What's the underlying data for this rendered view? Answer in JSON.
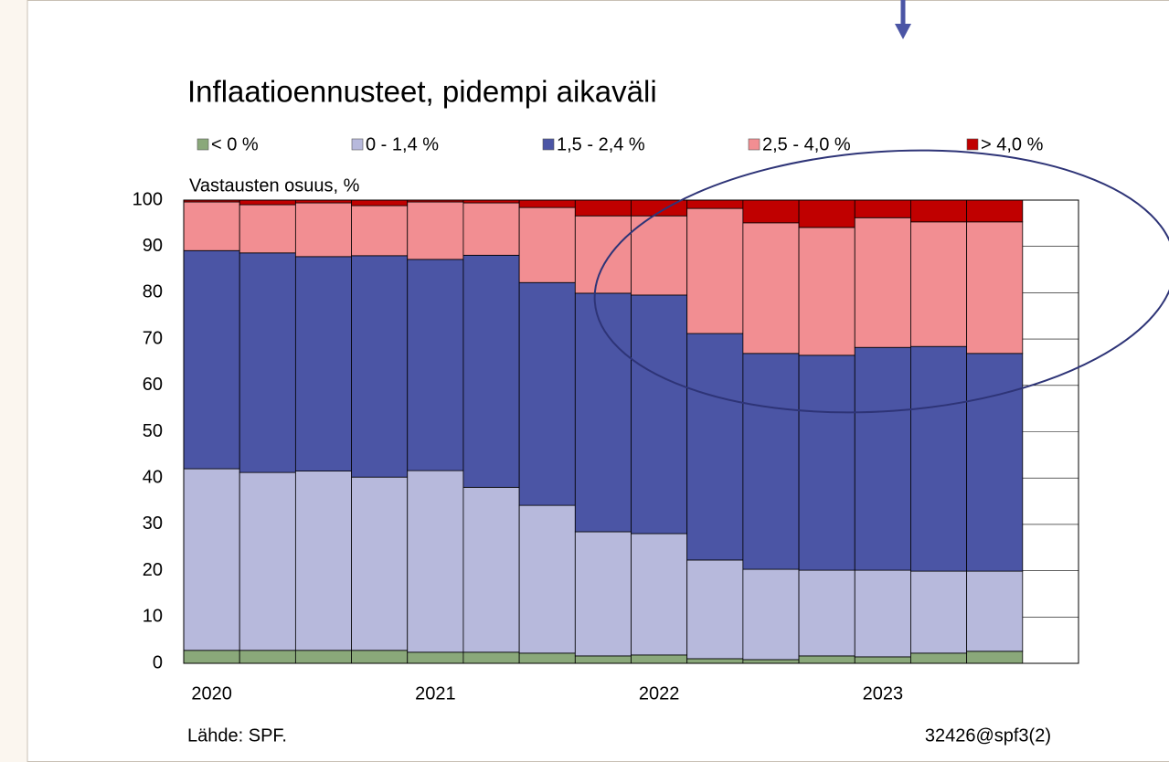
{
  "chart_data": {
    "type": "stacked-bar",
    "title": "Inflaatioennusteet, pidempi aikaväli",
    "y_label": "Vastausten osuus, %",
    "source": "Lähde: SPF.",
    "code": "32426@spf3(2)",
    "categories": [
      "2020",
      null,
      null,
      null,
      "2021",
      null,
      null,
      null,
      "2022",
      null,
      null,
      null,
      "2023",
      null,
      null,
      null
    ],
    "series": [
      {
        "name": "< 0 %",
        "color": "#8aa87a",
        "values": [
          2.8,
          2.8,
          2.8,
          2.8,
          2.4,
          2.4,
          2.2,
          1.6,
          1.8,
          1.0,
          0.8,
          1.6,
          1.4,
          2.2,
          2.6,
          null
        ]
      },
      {
        "name": "0 - 1,4 %",
        "color": "#b7b9dc",
        "values": [
          39.2,
          38.4,
          38.7,
          37.4,
          39.2,
          35.6,
          31.9,
          26.8,
          26.2,
          21.3,
          19.5,
          18.5,
          18.7,
          17.7,
          17.3,
          null
        ]
      },
      {
        "name": "1,5 - 2,4 %",
        "color": "#4b55a5",
        "values": [
          47.1,
          47.4,
          46.3,
          47.8,
          45.6,
          50.1,
          48.1,
          51.5,
          51.5,
          48.9,
          46.6,
          46.4,
          48.1,
          48.5,
          47.0,
          null
        ]
      },
      {
        "name": "2,5 - 4,0 %",
        "color": "#f28e92",
        "values": [
          10.5,
          10.4,
          11.6,
          10.8,
          12.4,
          11.3,
          16.2,
          16.7,
          17.1,
          27.0,
          28.2,
          27.6,
          28.0,
          26.9,
          28.4,
          null
        ]
      },
      {
        "name": "> 4,0 %",
        "color": "#c00000",
        "values": [
          0.4,
          1.0,
          0.6,
          1.2,
          0.4,
          0.6,
          1.6,
          3.4,
          3.4,
          1.8,
          4.9,
          5.9,
          3.8,
          4.7,
          4.7,
          null
        ]
      }
    ],
    "ylim": [
      0,
      100
    ],
    "yticks": [
      0,
      10,
      20,
      30,
      40,
      50,
      60,
      70,
      80,
      90,
      100
    ],
    "grid": true
  }
}
